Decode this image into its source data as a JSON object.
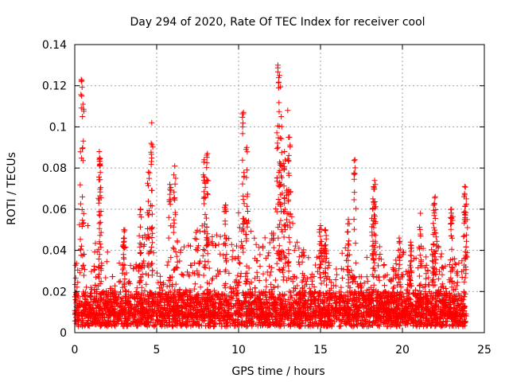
{
  "chart_data": {
    "type": "scatter",
    "marker": "plus",
    "color": "#ff0000",
    "title": "Day 294 of 2020, Rate Of TEC Index for receiver cool",
    "xlabel": "GPS time / hours",
    "ylabel": "ROTI / TECUs",
    "xlim": [
      0,
      25
    ],
    "ylim": [
      0,
      0.14
    ],
    "xticks": [
      0,
      5,
      10,
      15,
      20,
      25
    ],
    "xtick_labels": [
      "0",
      "5",
      "10",
      "15",
      "20",
      "25"
    ],
    "yticks": [
      0,
      0.02,
      0.04,
      0.06,
      0.08,
      0.1,
      0.12,
      0.14
    ],
    "ytick_labels": [
      "0",
      "0.02",
      "0.04",
      "0.06",
      "0.08",
      "0.1",
      "0.12",
      "0.14"
    ],
    "grid": true,
    "data_extent_hours": [
      0,
      23.9
    ],
    "baseline_range": [
      0.003,
      0.02
    ],
    "peaks": [
      {
        "x": 0.4,
        "y": 0.123
      },
      {
        "x": 0.5,
        "y": 0.111
      },
      {
        "x": 1.5,
        "y": 0.088
      },
      {
        "x": 1.55,
        "y": 0.082
      },
      {
        "x": 3.0,
        "y": 0.05
      },
      {
        "x": 4.0,
        "y": 0.06
      },
      {
        "x": 4.5,
        "y": 0.078
      },
      {
        "x": 4.7,
        "y": 0.102
      },
      {
        "x": 5.8,
        "y": 0.072
      },
      {
        "x": 6.1,
        "y": 0.081
      },
      {
        "x": 7.9,
        "y": 0.084
      },
      {
        "x": 8.1,
        "y": 0.087
      },
      {
        "x": 9.2,
        "y": 0.062
      },
      {
        "x": 10.3,
        "y": 0.107
      },
      {
        "x": 10.5,
        "y": 0.09
      },
      {
        "x": 12.4,
        "y": 0.13
      },
      {
        "x": 12.5,
        "y": 0.125
      },
      {
        "x": 12.6,
        "y": 0.105
      },
      {
        "x": 12.8,
        "y": 0.088
      },
      {
        "x": 13.0,
        "y": 0.108
      },
      {
        "x": 13.1,
        "y": 0.095
      },
      {
        "x": 15.0,
        "y": 0.052
      },
      {
        "x": 15.3,
        "y": 0.05
      },
      {
        "x": 16.7,
        "y": 0.055
      },
      {
        "x": 17.1,
        "y": 0.084
      },
      {
        "x": 18.3,
        "y": 0.074
      },
      {
        "x": 18.2,
        "y": 0.065
      },
      {
        "x": 19.8,
        "y": 0.046
      },
      {
        "x": 20.5,
        "y": 0.044
      },
      {
        "x": 21.1,
        "y": 0.058
      },
      {
        "x": 22.0,
        "y": 0.066
      },
      {
        "x": 21.9,
        "y": 0.062
      },
      {
        "x": 23.0,
        "y": 0.06
      },
      {
        "x": 23.8,
        "y": 0.071
      },
      {
        "x": 23.9,
        "y": 0.065
      }
    ],
    "activity_envelope": [
      {
        "x": 0.0,
        "y": 0.03
      },
      {
        "x": 0.5,
        "y": 0.08
      },
      {
        "x": 1.0,
        "y": 0.035
      },
      {
        "x": 1.5,
        "y": 0.06
      },
      {
        "x": 2.0,
        "y": 0.04
      },
      {
        "x": 2.5,
        "y": 0.03
      },
      {
        "x": 3.0,
        "y": 0.045
      },
      {
        "x": 3.5,
        "y": 0.035
      },
      {
        "x": 4.0,
        "y": 0.045
      },
      {
        "x": 4.5,
        "y": 0.06
      },
      {
        "x": 5.0,
        "y": 0.03
      },
      {
        "x": 5.5,
        "y": 0.025
      },
      {
        "x": 6.0,
        "y": 0.055
      },
      {
        "x": 6.5,
        "y": 0.04
      },
      {
        "x": 7.0,
        "y": 0.045
      },
      {
        "x": 7.5,
        "y": 0.05
      },
      {
        "x": 8.0,
        "y": 0.06
      },
      {
        "x": 8.5,
        "y": 0.05
      },
      {
        "x": 9.0,
        "y": 0.05
      },
      {
        "x": 9.5,
        "y": 0.055
      },
      {
        "x": 10.0,
        "y": 0.06
      },
      {
        "x": 10.5,
        "y": 0.06
      },
      {
        "x": 11.0,
        "y": 0.045
      },
      {
        "x": 11.5,
        "y": 0.045
      },
      {
        "x": 12.0,
        "y": 0.05
      },
      {
        "x": 12.5,
        "y": 0.07
      },
      {
        "x": 13.0,
        "y": 0.07
      },
      {
        "x": 13.5,
        "y": 0.045
      },
      {
        "x": 14.0,
        "y": 0.04
      },
      {
        "x": 14.5,
        "y": 0.035
      },
      {
        "x": 15.0,
        "y": 0.045
      },
      {
        "x": 15.5,
        "y": 0.035
      },
      {
        "x": 16.0,
        "y": 0.035
      },
      {
        "x": 16.5,
        "y": 0.045
      },
      {
        "x": 17.0,
        "y": 0.035
      },
      {
        "x": 17.5,
        "y": 0.03
      },
      {
        "x": 18.0,
        "y": 0.04
      },
      {
        "x": 18.5,
        "y": 0.045
      },
      {
        "x": 19.0,
        "y": 0.03
      },
      {
        "x": 19.5,
        "y": 0.035
      },
      {
        "x": 20.0,
        "y": 0.04
      },
      {
        "x": 20.5,
        "y": 0.035
      },
      {
        "x": 21.0,
        "y": 0.045
      },
      {
        "x": 21.5,
        "y": 0.04
      },
      {
        "x": 22.0,
        "y": 0.05
      },
      {
        "x": 22.5,
        "y": 0.035
      },
      {
        "x": 23.0,
        "y": 0.04
      },
      {
        "x": 23.5,
        "y": 0.035
      },
      {
        "x": 23.9,
        "y": 0.04
      }
    ]
  }
}
